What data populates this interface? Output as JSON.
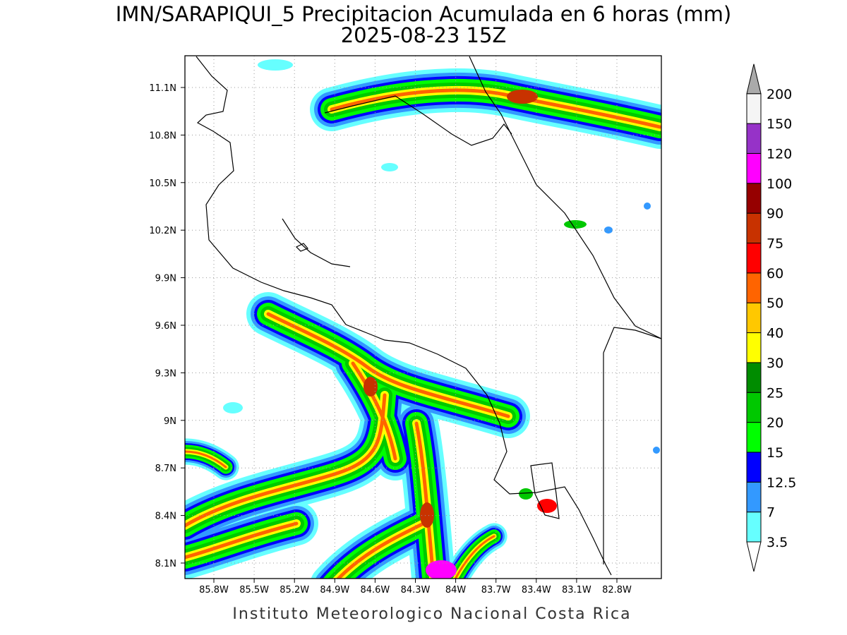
{
  "title": "IMN/SARAPIQUI_5 Precipitacion Acumulada en 6 horas (mm)",
  "subtitle": "2025-08-23 15Z",
  "map": {
    "lat_labels": [
      "11.1N",
      "10.8N",
      "10.5N",
      "10.2N",
      "9.9N",
      "9.6N",
      "9.3N",
      "9N",
      "8.7N",
      "8.4N",
      "8.1N"
    ],
    "lon_labels": [
      "85.8W",
      "85.5W",
      "85.2W",
      "84.9W",
      "84.6W",
      "84.3W",
      "84W",
      "83.7W",
      "83.4W",
      "83.1W",
      "82.8W"
    ]
  },
  "colorbar": {
    "under_color": "#ffffff",
    "levels": [
      {
        "label": "3.5",
        "color": "#66ffff"
      },
      {
        "label": "7",
        "color": "#3399ff"
      },
      {
        "label": "12.5",
        "color": "#0000ff"
      },
      {
        "label": "15",
        "color": "#00ff00"
      },
      {
        "label": "20",
        "color": "#00c800"
      },
      {
        "label": "25",
        "color": "#008c00"
      },
      {
        "label": "30",
        "color": "#ffff00"
      },
      {
        "label": "40",
        "color": "#ffc800"
      },
      {
        "label": "50",
        "color": "#ff6400"
      },
      {
        "label": "60",
        "color": "#ff0000"
      },
      {
        "label": "75",
        "color": "#c83200"
      },
      {
        "label": "90",
        "color": "#960000"
      },
      {
        "label": "100",
        "color": "#ff00ff"
      },
      {
        "label": "120",
        "color": "#9632c8"
      },
      {
        "label": "150",
        "color": "#f5f5f5"
      },
      {
        "label": "200",
        "color": "#aaaaaa"
      }
    ]
  },
  "footer": "Instituto Meteorologico Nacional Costa Rica"
}
